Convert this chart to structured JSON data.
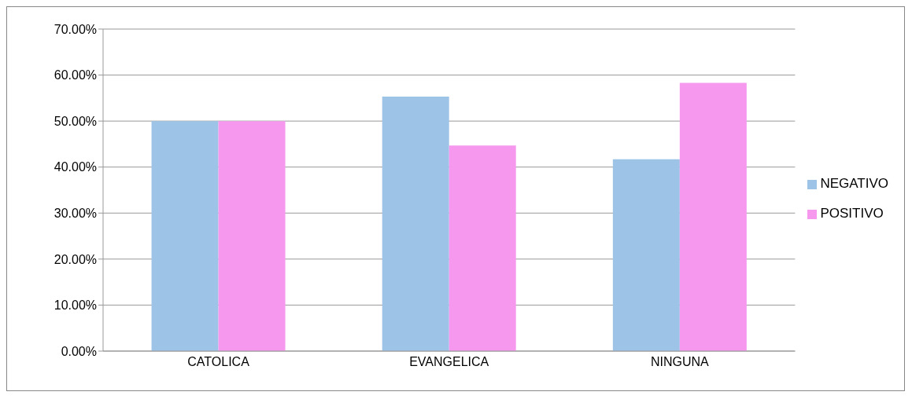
{
  "chart_data": {
    "type": "bar",
    "categories": [
      "CATOLICA",
      "EVANGELICA",
      "NINGUNA"
    ],
    "series": [
      {
        "name": "NEGATIVO",
        "color": "#9dc3e6",
        "values": [
          50,
          55.3,
          41.7
        ]
      },
      {
        "name": "POSITIVO",
        "color": "#f598ee",
        "values": [
          50,
          44.7,
          58.3
        ]
      }
    ],
    "ylim": [
      0,
      70
    ],
    "yticks": [
      {
        "value": 0,
        "label": "0.00%"
      },
      {
        "value": 10,
        "label": "10.00%"
      },
      {
        "value": 20,
        "label": "20.00%"
      },
      {
        "value": 30,
        "label": "30.00%"
      },
      {
        "value": 40,
        "label": "40.00%"
      },
      {
        "value": 50,
        "label": "50.00%"
      },
      {
        "value": 60,
        "label": "60.00%"
      },
      {
        "value": 70,
        "label": "70.00%"
      }
    ],
    "grid": "y",
    "legend": "right"
  }
}
